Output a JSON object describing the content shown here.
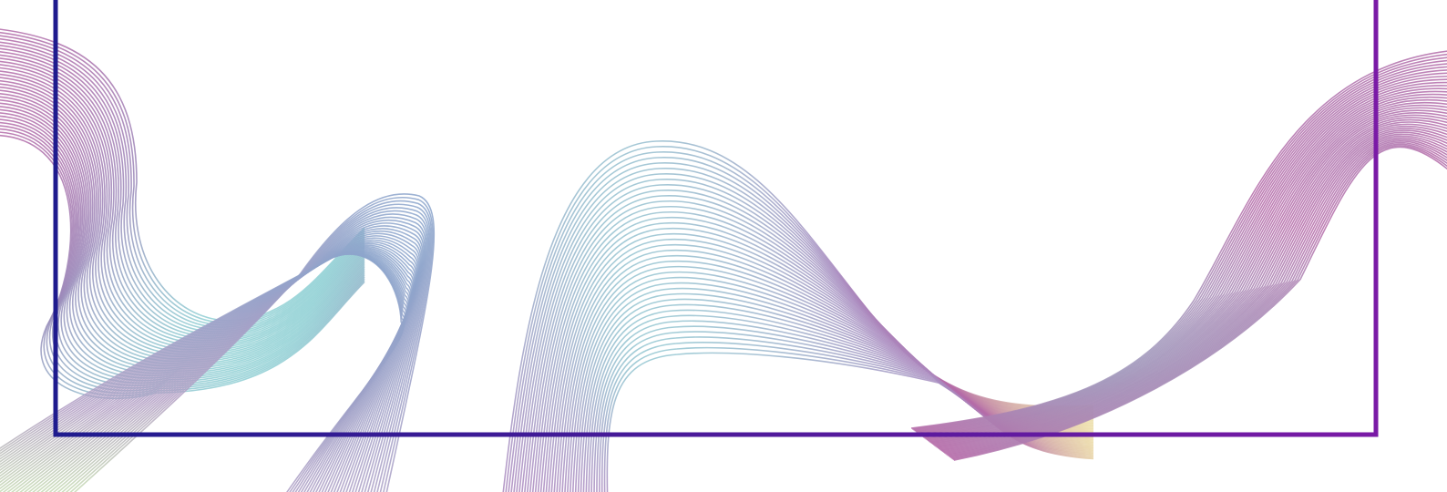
{
  "background_color": "#ffffff",
  "frame": {
    "color_start": "#1f1b8e",
    "color_end": "#7a1aa6"
  },
  "wave_palette": {
    "magenta": "#b46aa8",
    "blue": "#8aa5cc",
    "cyan": "#8fd0d4",
    "green": "#c9e5b0",
    "yellow": "#ecdca4"
  },
  "decoration": {
    "style": "contour-line waves",
    "ribbons": [
      "left-ribbon",
      "center-left-ribbon",
      "center-wave",
      "right-ribbon"
    ]
  }
}
